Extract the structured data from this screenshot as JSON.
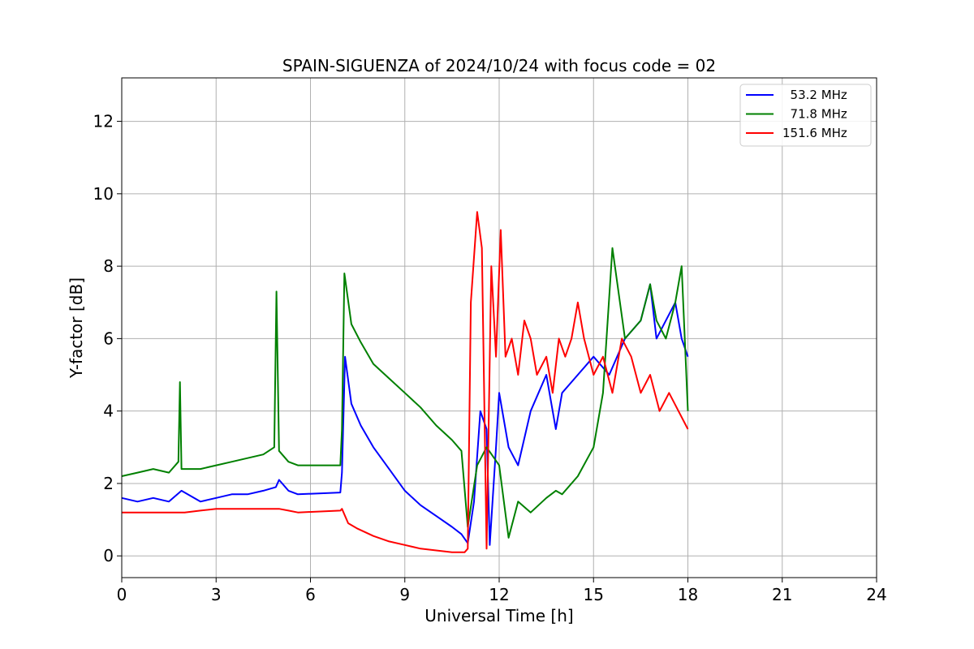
{
  "chart_data": {
    "type": "line",
    "title": "SPAIN-SIGUENZA of 2024/10/24 with focus code = 02",
    "xlabel": "Universal Time [h]",
    "ylabel": "Y-factor [dB]",
    "xlim": [
      0,
      24
    ],
    "ylim": [
      -0.6,
      13.2
    ],
    "xticks": [
      0,
      3,
      6,
      9,
      12,
      15,
      18,
      21,
      24
    ],
    "yticks": [
      0,
      2,
      4,
      6,
      8,
      10,
      12
    ],
    "grid": true,
    "legend_position": "top-right",
    "series": [
      {
        "name": "  53.2 MHz",
        "color": "#0000ff",
        "x": [
          0,
          0.5,
          1,
          1.5,
          1.9,
          2.5,
          3,
          3.5,
          4,
          4.5,
          4.9,
          5.0,
          5.3,
          5.6,
          6.95,
          7.0,
          7.1,
          7.3,
          7.6,
          8.0,
          8.5,
          9.0,
          9.5,
          10.0,
          10.5,
          10.8,
          11.0,
          11.2,
          11.4,
          11.6,
          11.7,
          11.9,
          12.0,
          12.3,
          12.6,
          13.0,
          13.5,
          13.8,
          14.0,
          14.5,
          15.0,
          15.5,
          16.0,
          16.5,
          16.8,
          17.0,
          17.3,
          17.6,
          17.8,
          18.0
        ],
        "y": [
          1.6,
          1.5,
          1.6,
          1.5,
          1.8,
          1.5,
          1.6,
          1.7,
          1.7,
          1.8,
          1.9,
          2.1,
          1.8,
          1.7,
          1.75,
          2.3,
          5.5,
          4.2,
          3.6,
          3.0,
          2.4,
          1.8,
          1.4,
          1.1,
          0.8,
          0.6,
          0.35,
          1.5,
          4.0,
          3.5,
          0.3,
          3.0,
          4.5,
          3.0,
          2.5,
          4.0,
          5.0,
          3.5,
          4.5,
          5.0,
          5.5,
          5.0,
          6.0,
          6.5,
          7.5,
          6.0,
          6.5,
          7.0,
          6.0,
          5.5
        ]
      },
      {
        "name": "  71.8 MHz",
        "color": "#008000",
        "x": [
          0,
          0.5,
          1,
          1.5,
          1.8,
          1.85,
          1.9,
          2.5,
          3,
          3.5,
          4,
          4.5,
          4.85,
          4.92,
          5.0,
          5.3,
          5.6,
          6.95,
          7.0,
          7.08,
          7.3,
          7.6,
          8.0,
          8.5,
          9.0,
          9.5,
          10.0,
          10.5,
          10.8,
          11.0,
          11.3,
          11.6,
          12.0,
          12.3,
          12.6,
          13.0,
          13.5,
          13.8,
          14.0,
          14.5,
          15.0,
          15.3,
          15.6,
          16.0,
          16.5,
          16.8,
          17.0,
          17.3,
          17.6,
          17.8,
          18.0
        ],
        "y": [
          2.2,
          2.3,
          2.4,
          2.3,
          2.6,
          4.8,
          2.4,
          2.4,
          2.5,
          2.6,
          2.7,
          2.8,
          3.0,
          7.3,
          2.9,
          2.6,
          2.5,
          2.5,
          3.5,
          7.8,
          6.4,
          5.9,
          5.3,
          4.9,
          4.5,
          4.1,
          3.6,
          3.2,
          2.9,
          0.8,
          2.5,
          3.0,
          2.5,
          0.5,
          1.5,
          1.2,
          1.6,
          1.8,
          1.7,
          2.2,
          3.0,
          4.5,
          8.5,
          6.0,
          6.5,
          7.5,
          6.5,
          6.0,
          7.0,
          8.0,
          4.0
        ]
      },
      {
        "name": "151.6 MHz",
        "color": "#ff0000",
        "x": [
          0,
          0.5,
          1,
          1.5,
          2,
          2.5,
          3,
          3.5,
          4,
          4.5,
          5.0,
          5.3,
          5.6,
          6.95,
          7.0,
          7.2,
          7.5,
          8.0,
          8.5,
          9.0,
          9.5,
          10.0,
          10.5,
          10.9,
          11.0,
          11.1,
          11.3,
          11.45,
          11.6,
          11.75,
          11.9,
          12.05,
          12.2,
          12.4,
          12.6,
          12.8,
          13.0,
          13.2,
          13.5,
          13.7,
          13.9,
          14.1,
          14.3,
          14.5,
          14.7,
          15.0,
          15.3,
          15.6,
          15.9,
          16.2,
          16.5,
          16.8,
          17.1,
          17.4,
          17.7,
          18.0
        ],
        "y": [
          1.2,
          1.2,
          1.2,
          1.2,
          1.2,
          1.25,
          1.3,
          1.3,
          1.3,
          1.3,
          1.3,
          1.25,
          1.2,
          1.25,
          1.3,
          0.9,
          0.75,
          0.55,
          0.4,
          0.3,
          0.2,
          0.15,
          0.1,
          0.1,
          0.2,
          7.0,
          9.5,
          8.5,
          0.2,
          8.0,
          5.5,
          9.0,
          5.5,
          6.0,
          5.0,
          6.5,
          6.0,
          5.0,
          5.5,
          4.5,
          6.0,
          5.5,
          6.0,
          7.0,
          6.0,
          5.0,
          5.5,
          4.5,
          6.0,
          5.5,
          4.5,
          5.0,
          4.0,
          4.5,
          4.0,
          3.5
        ]
      }
    ]
  }
}
